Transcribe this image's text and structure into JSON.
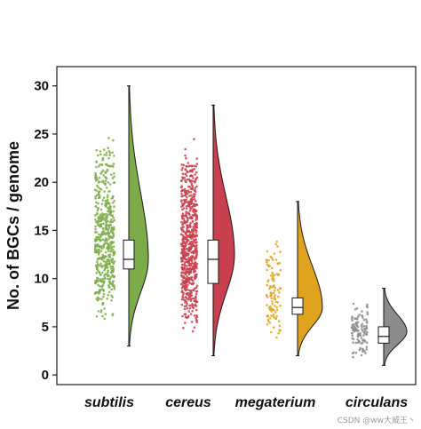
{
  "watermark": "CSDN @ww大威王丶",
  "chart_data": {
    "type": "raincloud",
    "title": "",
    "xlabel": "",
    "ylabel": "No. of BGCs / genome",
    "ylim": [
      -1,
      32
    ],
    "yticks": [
      0,
      5,
      10,
      15,
      20,
      25,
      30
    ],
    "grid": false,
    "legend": "none",
    "categories": [
      "subtilis",
      "cereus",
      "megaterium",
      "circulans"
    ],
    "colors": {
      "subtilis": "#7cab4a",
      "cereus": "#c8404e",
      "megaterium": "#e0a320",
      "circulans": "#8c8c8c"
    },
    "series": [
      {
        "name": "subtilis",
        "min": 3,
        "q1": 11,
        "median": 12,
        "q3": 14,
        "max": 30,
        "mode": 12,
        "n": 520
      },
      {
        "name": "cereus",
        "min": 2,
        "q1": 9.5,
        "median": 12,
        "q3": 14,
        "max": 28,
        "mode": 12.5,
        "n": 650
      },
      {
        "name": "megaterium",
        "min": 2,
        "q1": 6.3,
        "median": 7,
        "q3": 8,
        "max": 18,
        "mode": 7,
        "n": 110
      },
      {
        "name": "circulans",
        "min": 1,
        "q1": 3.3,
        "median": 4,
        "q3": 5,
        "max": 9,
        "mode": 4.5,
        "n": 110
      }
    ]
  }
}
